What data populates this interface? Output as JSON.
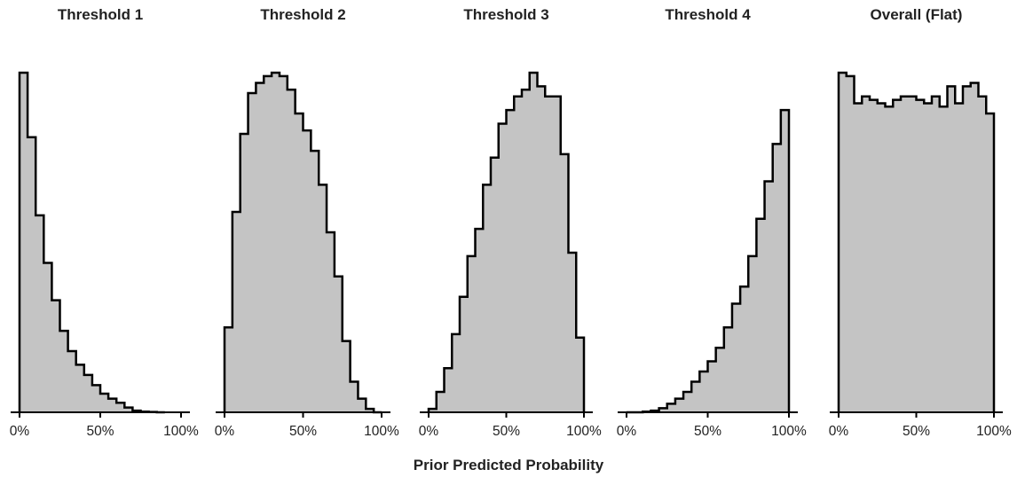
{
  "chart_data": [
    {
      "type": "histogram",
      "title": "Threshold 1",
      "xlim": [
        0,
        1
      ],
      "bin_width": 0.05,
      "x_ticks": [
        0,
        0.5,
        1
      ],
      "x_tick_labels": [
        "0%",
        "50%",
        "100%"
      ],
      "values": [
        1.0,
        0.81,
        0.58,
        0.44,
        0.33,
        0.24,
        0.18,
        0.14,
        0.11,
        0.08,
        0.055,
        0.04,
        0.028,
        0.014,
        0.005,
        0.002,
        0.001,
        0.0
      ]
    },
    {
      "type": "histogram",
      "title": "Threshold 2",
      "xlim": [
        0,
        1
      ],
      "bin_width": 0.05,
      "x_ticks": [
        0,
        0.5,
        1
      ],
      "x_tick_labels": [
        "0%",
        "50%",
        "100%"
      ],
      "values": [
        0.25,
        0.59,
        0.82,
        0.94,
        0.97,
        0.99,
        1.0,
        0.99,
        0.95,
        0.88,
        0.83,
        0.77,
        0.67,
        0.53,
        0.4,
        0.21,
        0.09,
        0.04,
        0.01,
        0.0
      ]
    },
    {
      "type": "histogram",
      "title": "Threshold 3",
      "xlim": [
        0,
        1
      ],
      "bin_width": 0.05,
      "x_ticks": [
        0,
        0.5,
        1
      ],
      "x_tick_labels": [
        "0%",
        "50%",
        "100%"
      ],
      "values": [
        0.01,
        0.06,
        0.13,
        0.23,
        0.34,
        0.46,
        0.54,
        0.67,
        0.75,
        0.85,
        0.89,
        0.93,
        0.95,
        1.0,
        0.96,
        0.93,
        0.93,
        0.76,
        0.47,
        0.22
      ]
    },
    {
      "type": "histogram",
      "title": "Threshold 4",
      "xlim": [
        0,
        1
      ],
      "bin_width": 0.05,
      "x_ticks": [
        0,
        0.5,
        1
      ],
      "x_tick_labels": [
        "0%",
        "50%",
        "100%"
      ],
      "values": [
        0.0,
        0.0,
        0.002,
        0.005,
        0.012,
        0.025,
        0.04,
        0.06,
        0.09,
        0.12,
        0.15,
        0.19,
        0.25,
        0.32,
        0.37,
        0.46,
        0.57,
        0.68,
        0.79,
        0.89,
        1.0
      ]
    },
    {
      "type": "histogram",
      "title": "Overall (Flat)",
      "xlim": [
        0,
        1
      ],
      "bin_width": 0.05,
      "x_ticks": [
        0,
        0.5,
        1
      ],
      "x_tick_labels": [
        "0%",
        "50%",
        "100%"
      ],
      "values": [
        1.0,
        0.99,
        0.91,
        0.93,
        0.92,
        0.91,
        0.9,
        0.92,
        0.93,
        0.93,
        0.92,
        0.91,
        0.93,
        0.9,
        0.96,
        0.91,
        0.96,
        0.97,
        0.93,
        0.88,
        0.97
      ]
    }
  ],
  "shared_xlabel": "Prior Predicted Probability",
  "colors": {
    "fill": "#c4c4c4",
    "stroke": "#000000",
    "text": "#222222"
  }
}
